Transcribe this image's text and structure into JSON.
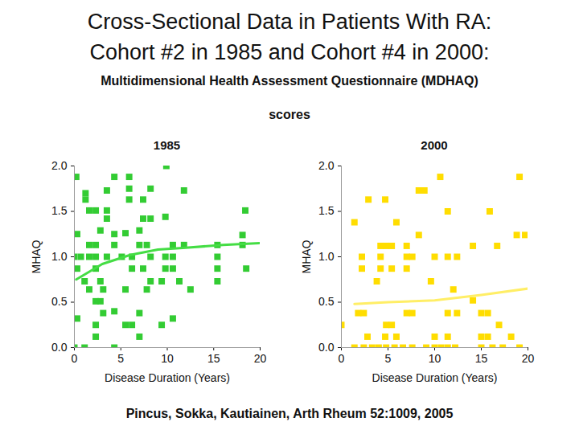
{
  "title": [
    "Cross-Sectional Data in Patients With RA:",
    "Cohort #2 in 1985 and Cohort #4 in 2000:"
  ],
  "subtitle": [
    "Multidimensional Health Assessment Questionnaire (MDHAQ)",
    "scores"
  ],
  "caption": "Pincus, Sokka, Kautiainen, Arth Rheum 52:1009, 2005",
  "chart_data": [
    {
      "type": "scatter",
      "title": "1985",
      "xlabel": "Disease Duration (Years)",
      "ylabel": "MHAQ",
      "xlim": [
        0,
        20
      ],
      "ylim": [
        0,
        2
      ],
      "xticks": [
        0,
        5,
        10,
        15,
        20
      ],
      "yticks": [
        {
          "value": 0,
          "label": "0.0"
        },
        {
          "value": 0.5,
          "label": "0.5"
        },
        {
          "value": 1,
          "label": "1.0"
        },
        {
          "value": 1.5,
          "label": "1.5"
        },
        {
          "value": 2,
          "label": "2.0"
        }
      ],
      "series": [
        {
          "type": "scatter",
          "marker": "square",
          "color": "#33cc33",
          "x": [
            0.2,
            4.3,
            5.9,
            9.9,
            1.2,
            3.5,
            5.9,
            8.2,
            11.8,
            1.2,
            5.9,
            7.4,
            1.6,
            2.3,
            3.5,
            18.4,
            3.5,
            7.4,
            8.2,
            9.8,
            0.3,
            2.8,
            4.3,
            5.5,
            7.0,
            18.1,
            1.6,
            2.3,
            4.3,
            7.0,
            7.8,
            10.6,
            11.8,
            15.4,
            18.1,
            0,
            0.7,
            1.6,
            2.3,
            3.5,
            5.1,
            6.2,
            8.2,
            9.8,
            10.6,
            15.4,
            0.3,
            2.3,
            6.2,
            7.4,
            9.8,
            10.6,
            15.4,
            18.5,
            1.1,
            2.8,
            8.2,
            9.4,
            11.3,
            15.4,
            1.6,
            3.1,
            5.5,
            7.8,
            12.5,
            2.3,
            2.8,
            3.1,
            4.3,
            7.0,
            0.3,
            10.6,
            2.3,
            5.5,
            6.2,
            9.4,
            2.3,
            7.0,
            0,
            1.1,
            4.3
          ],
          "values": [
            1.88,
            1.88,
            1.88,
            2.0,
            1.7,
            1.73,
            1.75,
            1.75,
            1.73,
            1.63,
            1.63,
            1.63,
            1.51,
            1.51,
            1.51,
            1.51,
            1.42,
            1.42,
            1.42,
            1.44,
            1.25,
            1.29,
            1.25,
            1.26,
            1.29,
            1.24,
            1.13,
            1.13,
            1.13,
            1.13,
            1.13,
            1.13,
            1.13,
            1.13,
            1.13,
            1.0,
            1.0,
            1.0,
            1.0,
            1.0,
            1.0,
            1.0,
            1.0,
            1.0,
            1.0,
            1.0,
            0.87,
            0.87,
            0.87,
            0.87,
            0.87,
            0.87,
            0.87,
            0.87,
            0.73,
            0.73,
            0.73,
            0.73,
            0.73,
            0.73,
            0.64,
            0.64,
            0.64,
            0.64,
            0.64,
            0.51,
            0.51,
            0.38,
            0.4,
            0.38,
            0.32,
            0.32,
            0.25,
            0.25,
            0.25,
            0.25,
            0.12,
            0.12,
            0,
            0,
            0
          ]
        },
        {
          "type": "line",
          "line_style": "solid",
          "color": "#44dd44",
          "x": [
            0.2,
            3,
            6,
            9,
            12,
            16,
            20
          ],
          "values": [
            0.75,
            0.92,
            1.02,
            1.08,
            1.1,
            1.13,
            1.15
          ]
        }
      ]
    },
    {
      "type": "scatter",
      "title": "2000",
      "xlabel": "Disease Duration (Years)",
      "ylabel": "MHAQ",
      "xlim": [
        0,
        20
      ],
      "ylim": [
        0,
        2
      ],
      "xticks": [
        0,
        5,
        10,
        15,
        20
      ],
      "yticks": [
        {
          "value": 0,
          "label": "0.0"
        },
        {
          "value": 0.5,
          "label": "0.5"
        },
        {
          "value": 1,
          "label": "1.0"
        },
        {
          "value": 1.5,
          "label": "1.5"
        },
        {
          "value": 2,
          "label": "2.0"
        }
      ],
      "series": [
        {
          "type": "scatter",
          "marker": "square",
          "color": "#ffdd00",
          "x": [
            1.4,
            5.9,
            10.6,
            19.1,
            8.3,
            8.9,
            2.9,
            4.7,
            11.4,
            15.9,
            18.8,
            19.7,
            14.1,
            16.7,
            4.2,
            4.8,
            5.4,
            7.0,
            8.3,
            2.2,
            4.2,
            5.4,
            7.0,
            2.2,
            4.2,
            7.0,
            7.6,
            10.0,
            11.4,
            12.4,
            3.8,
            9.6,
            12.0,
            1.8,
            2.4,
            7.0,
            7.6,
            11.4,
            12.4,
            15.0,
            15.7,
            14.1,
            0,
            4.8,
            5.4,
            16.9,
            2.8,
            4.7,
            5.9,
            10.0,
            11.4,
            15.0,
            15.7,
            18.2,
            1.4,
            2.4,
            3.3,
            4.0,
            4.8,
            5.7,
            6.6,
            7.6,
            9.1,
            10.0,
            10.7,
            11.4,
            12.2,
            15.0,
            16.2,
            17.3,
            19.1
          ],
          "values": [
            1.38,
            1.38,
            1.88,
            1.88,
            1.73,
            1.73,
            1.63,
            1.63,
            1.5,
            1.5,
            1.24,
            1.24,
            1.12,
            1.12,
            1.12,
            1.12,
            1.12,
            1.12,
            1.24,
            0.87,
            0.87,
            0.87,
            0.87,
            1.0,
            1.0,
            1.0,
            1.0,
            1.0,
            1.0,
            1.0,
            0.73,
            0.73,
            0.64,
            0.38,
            0.38,
            0.38,
            0.38,
            0.38,
            0.38,
            0.38,
            0.38,
            0.52,
            0.25,
            0.25,
            0.25,
            0.25,
            0.12,
            0.12,
            0.12,
            0.12,
            0.12,
            0.12,
            0.12,
            0.12,
            0,
            0,
            0,
            0,
            0,
            0,
            0,
            0,
            0,
            0,
            0,
            0,
            0,
            0,
            0,
            0,
            0
          ]
        },
        {
          "type": "line",
          "line_style": "solid",
          "color": "#ffee66",
          "x": [
            1.4,
            5,
            10,
            15,
            20
          ],
          "values": [
            0.48,
            0.5,
            0.52,
            0.58,
            0.65
          ]
        }
      ]
    }
  ]
}
